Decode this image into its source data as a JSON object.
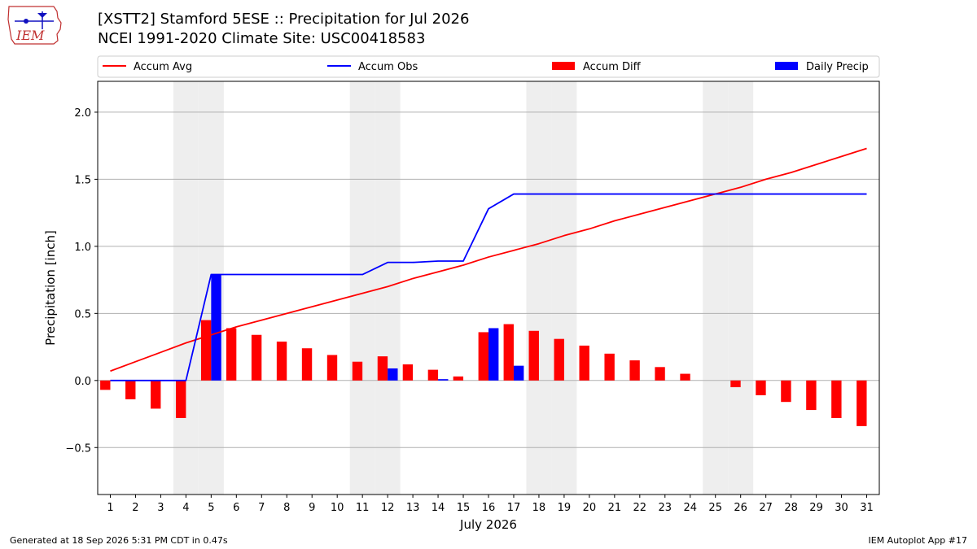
{
  "header": {
    "title": "[XSTT2] Stamford 5ESE :: Precipitation for Jul 2026",
    "subtitle": "NCEI 1991-2020 Climate Site: USC00418583",
    "logo_text": "IEM"
  },
  "footer": {
    "generated": "Generated at 18 Sep 2026 5:31 PM CDT in 0.47s",
    "app": "IEM Autoplot App #17"
  },
  "colors": {
    "avg": "#ff0000",
    "obs": "#0000ff",
    "diff": "#ff0000",
    "daily": "#0000ff",
    "weekend_band": "#eeeeee",
    "grid": "#b0b0b0"
  },
  "chart_data": {
    "type": "bar",
    "xlabel": "July 2026",
    "ylabel": "Precipitation [inch]",
    "xlim": [
      0.5,
      31.5
    ],
    "ylim": [
      -0.85,
      2.23
    ],
    "yticks": [
      -0.5,
      0.0,
      0.5,
      1.0,
      1.5,
      2.0
    ],
    "ytick_labels": [
      "−0.5",
      "0.0",
      "0.5",
      "1.0",
      "1.5",
      "2.0"
    ],
    "grid": true,
    "legend_placement": "top",
    "weekend_days": [
      4,
      5,
      11,
      12,
      18,
      19,
      25,
      26
    ],
    "x": [
      1,
      2,
      3,
      4,
      5,
      6,
      7,
      8,
      9,
      10,
      11,
      12,
      13,
      14,
      15,
      16,
      17,
      18,
      19,
      20,
      21,
      22,
      23,
      24,
      25,
      26,
      27,
      28,
      29,
      30,
      31
    ],
    "series": [
      {
        "name": "Accum Avg",
        "type": "line",
        "color": "#ff0000",
        "values": [
          0.07,
          0.14,
          0.21,
          0.28,
          0.34,
          0.4,
          0.45,
          0.5,
          0.55,
          0.6,
          0.65,
          0.7,
          0.76,
          0.81,
          0.86,
          0.92,
          0.97,
          1.02,
          1.08,
          1.13,
          1.19,
          1.24,
          1.29,
          1.34,
          1.39,
          1.44,
          1.5,
          1.55,
          1.61,
          1.67,
          1.73
        ]
      },
      {
        "name": "Accum Obs",
        "type": "line",
        "color": "#0000ff",
        "values": [
          0,
          0,
          0,
          0,
          0.79,
          0.79,
          0.79,
          0.79,
          0.79,
          0.79,
          0.79,
          0.88,
          0.88,
          0.89,
          0.89,
          1.28,
          1.39,
          1.39,
          1.39,
          1.39,
          1.39,
          1.39,
          1.39,
          1.39,
          1.39,
          1.39,
          1.39,
          1.39,
          1.39,
          1.39,
          1.39
        ]
      },
      {
        "name": "Accum Diff",
        "type": "bar",
        "color": "#ff0000",
        "values": [
          -0.07,
          -0.14,
          -0.21,
          -0.28,
          0.45,
          0.39,
          0.34,
          0.29,
          0.24,
          0.19,
          0.14,
          0.18,
          0.12,
          0.08,
          0.03,
          0.36,
          0.42,
          0.37,
          0.31,
          0.26,
          0.2,
          0.15,
          0.1,
          0.05,
          0.0,
          -0.05,
          -0.11,
          -0.16,
          -0.22,
          -0.28,
          -0.34
        ]
      },
      {
        "name": "Daily Precip",
        "type": "bar",
        "color": "#0000ff",
        "values": [
          0,
          0,
          0,
          0,
          0.79,
          0,
          0,
          0,
          0,
          0,
          0,
          0.09,
          0,
          0.01,
          0,
          0.39,
          0.11,
          0,
          0,
          0,
          0,
          0,
          0,
          0,
          0,
          0,
          0,
          0,
          0,
          0,
          0
        ]
      }
    ]
  }
}
